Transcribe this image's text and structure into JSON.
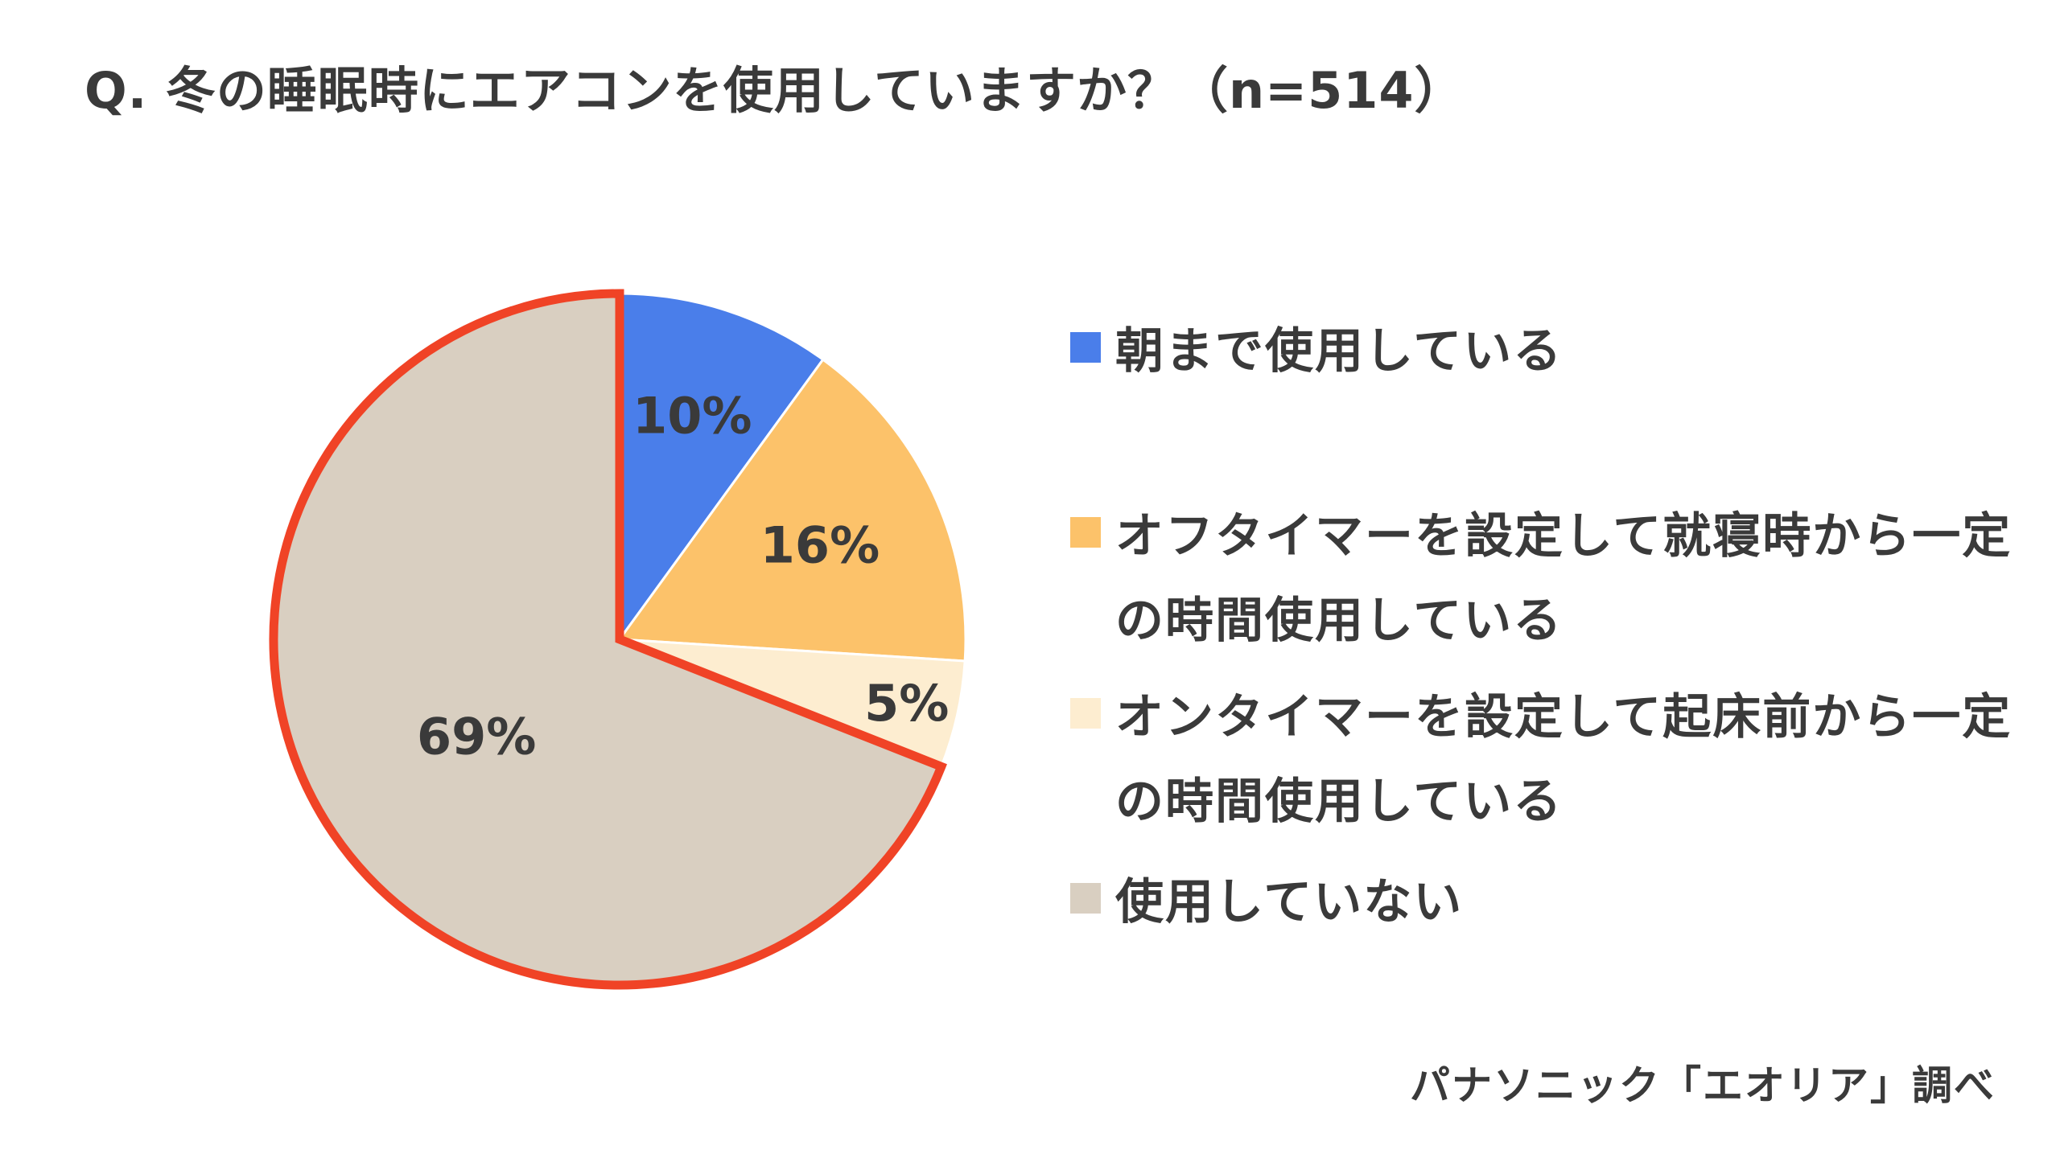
{
  "title": "Q. 冬の睡眠時にエアコンを使用していますか？（n=514）",
  "source": "パナソニック「エオリア」調べ",
  "chart_data": {
    "type": "pie",
    "title": "Q. 冬の睡眠時にエアコンを使用していますか？（n=514）",
    "n": 514,
    "start_angle": "12 o'clock",
    "direction": "clockwise",
    "legend_position": "right",
    "highlighted_slice": "使用していない",
    "highlight_color": "#f04326",
    "slices": [
      {
        "name": "朝まで使用している",
        "value": 10,
        "label": "10%",
        "color": "#4a7eea"
      },
      {
        "name": "オフタイマーを設定して就寝時から一定の時間使用している",
        "value": 16,
        "label": "16%",
        "color": "#fcc26a"
      },
      {
        "name": "オンタイマーを設定して起床前から一定の時間使用している",
        "value": 5,
        "label": "5%",
        "color": "#fdedd0"
      },
      {
        "name": "使用していない",
        "value": 69,
        "label": "69%",
        "color": "#d9cfc1"
      }
    ]
  }
}
